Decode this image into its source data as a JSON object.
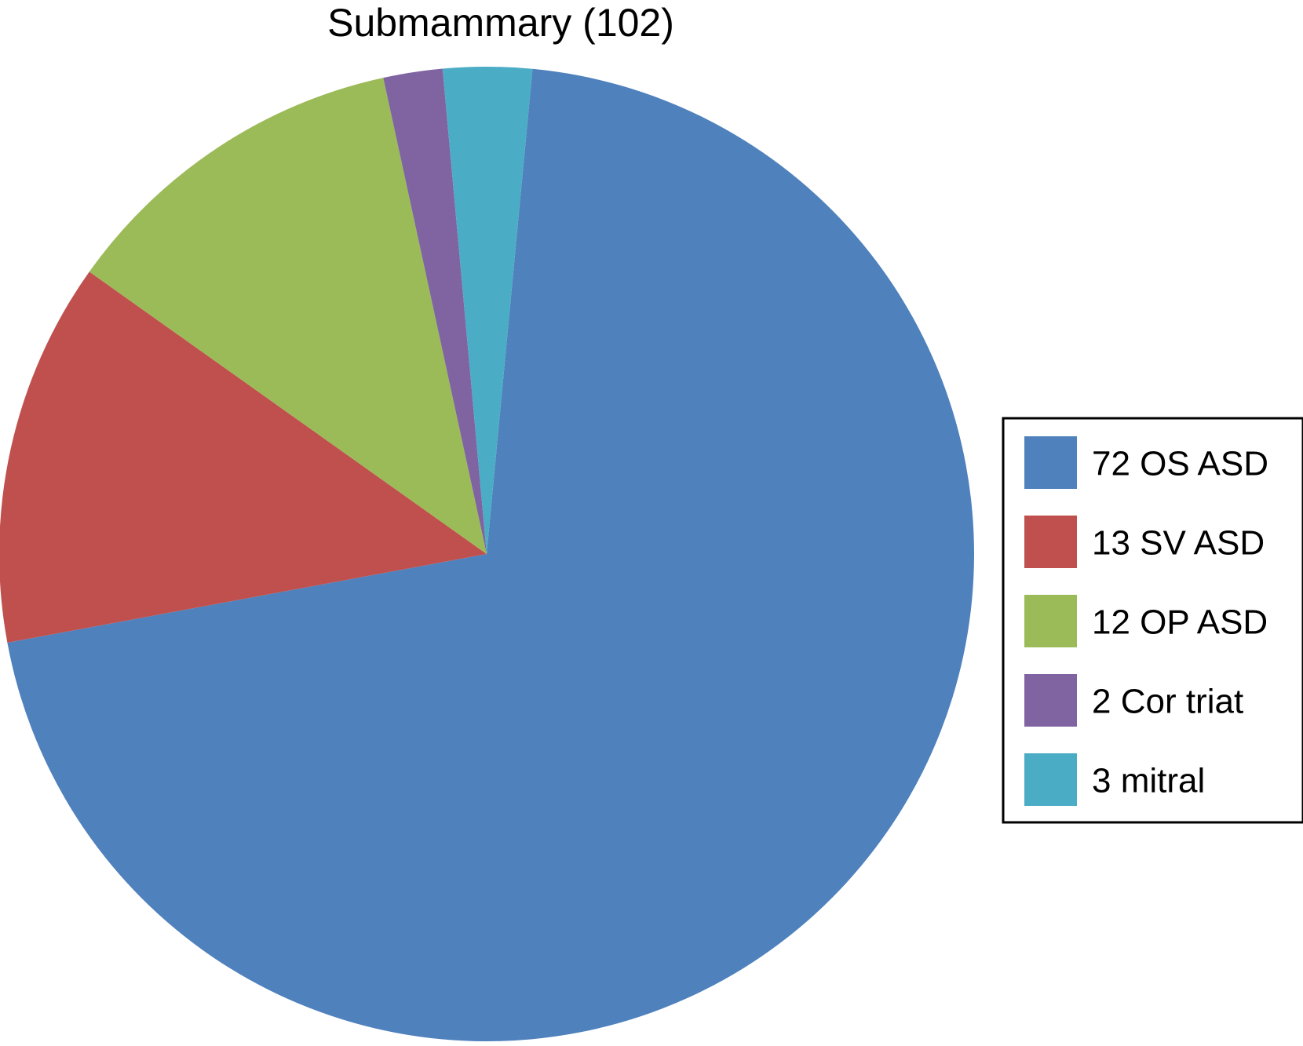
{
  "chart_data": {
    "type": "pie",
    "title": "Submammary (102)",
    "legend_position": "right",
    "slices": [
      {
        "label": "72 OS ASD",
        "value": 72,
        "color": "#4f81bd"
      },
      {
        "label": "13 SV ASD",
        "value": 13,
        "color": "#c0504d"
      },
      {
        "label": "12 OP ASD",
        "value": 12,
        "color": "#9bbb59"
      },
      {
        "label": "2 Cor triat",
        "value": 2,
        "color": "#8064a2"
      },
      {
        "label": "3 mitral",
        "value": 3,
        "color": "#4bacc6"
      }
    ]
  }
}
